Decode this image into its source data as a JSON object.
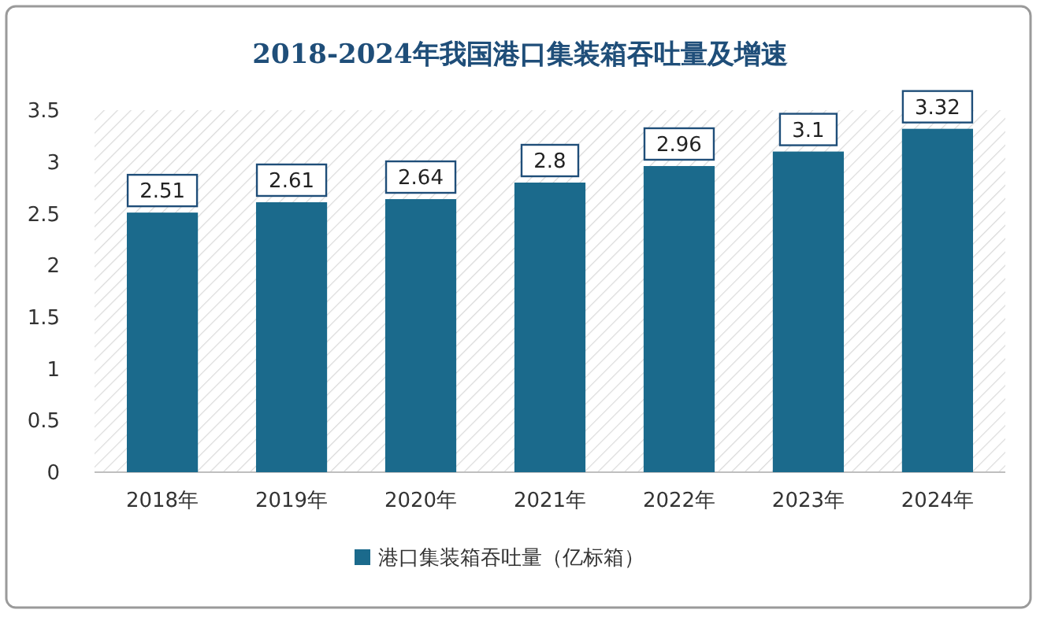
{
  "chart_data": {
    "type": "bar",
    "title": "2018-2024年我国港口集装箱吞吐量及增速",
    "categories": [
      "2018年",
      "2019年",
      "2020年",
      "2021年",
      "2022年",
      "2023年",
      "2024年"
    ],
    "series": [
      {
        "name": "港口集装箱吞吐量（亿标箱）",
        "color": "#1b6a8c",
        "values": [
          2.51,
          2.61,
          2.64,
          2.8,
          2.96,
          3.1,
          3.32
        ]
      }
    ],
    "ylim": [
      0,
      3.5
    ],
    "yticks": [
      0,
      0.5,
      1,
      1.5,
      2,
      2.5,
      3,
      3.5
    ],
    "grid": false,
    "legend": "bottom",
    "data_labels": true
  }
}
